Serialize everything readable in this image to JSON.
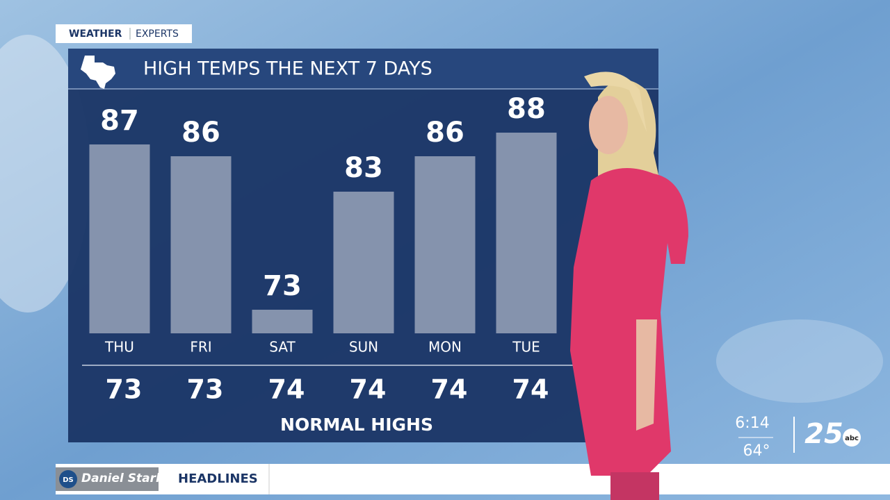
{
  "chart_data": {
    "type": "bar",
    "title": "HIGH TEMPS THE NEXT 7 DAYS",
    "categories": [
      "THU",
      "FRI",
      "SAT",
      "SUN",
      "MON",
      "TUE"
    ],
    "values": [
      87,
      86,
      73,
      83,
      86,
      88
    ],
    "color": "#8593ad",
    "ylim": [
      71,
      89
    ],
    "normal_highs": {
      "label": "NORMAL HIGHS",
      "values": [
        73,
        73,
        74,
        74,
        74,
        74
      ]
    }
  },
  "tag": {
    "left": "WEATHER",
    "right": "EXPERTS"
  },
  "bug": {
    "time": "6:14",
    "temperature": "64°",
    "channel": "25",
    "network": "abc"
  },
  "ticker": {
    "sponsor_initials": "DS",
    "sponsor": "Daniel Stark",
    "section": "HEADLINES"
  }
}
